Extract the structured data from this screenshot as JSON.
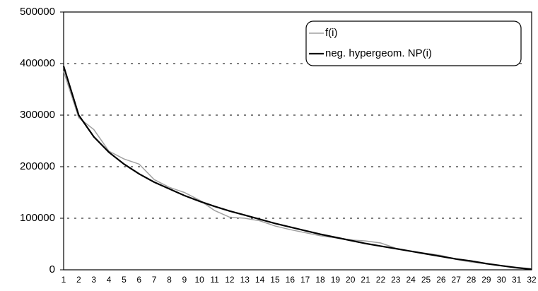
{
  "chart_data": {
    "type": "line",
    "categories": [
      "1",
      "2",
      "3",
      "4",
      "5",
      "6",
      "7",
      "8",
      "9",
      "10",
      "11",
      "12",
      "13",
      "14",
      "15",
      "16",
      "17",
      "18",
      "19",
      "20",
      "21",
      "22",
      "23",
      "24",
      "25",
      "26",
      "27",
      "28",
      "29",
      "30",
      "31",
      "32"
    ],
    "series": [
      {
        "name": "f(i)",
        "color": "#a0a0a0",
        "values": [
          385000,
          295000,
          272000,
          230000,
          215000,
          205000,
          175000,
          160000,
          150000,
          135000,
          115000,
          102000,
          100000,
          95000,
          85000,
          78000,
          72000,
          66000,
          62000,
          58000,
          56000,
          52000,
          42000,
          36000,
          32000,
          28000,
          20000,
          15000,
          12000,
          8000,
          5000,
          2000
        ]
      },
      {
        "name": "neg. hypergeom. NP(i)",
        "color": "#000000",
        "values": [
          395000,
          300000,
          258000,
          228000,
          205000,
          186000,
          170000,
          157000,
          144000,
          133000,
          123000,
          114000,
          106000,
          98000,
          90000,
          83000,
          76000,
          69000,
          63000,
          57000,
          51000,
          46000,
          41000,
          36000,
          31000,
          26000,
          21000,
          17000,
          12000,
          8000,
          4000,
          1000
        ]
      }
    ],
    "ylim": [
      0,
      500000
    ],
    "yticks": [
      0,
      100000,
      200000,
      300000,
      400000,
      500000
    ],
    "grid": true,
    "legend": "upper right"
  }
}
